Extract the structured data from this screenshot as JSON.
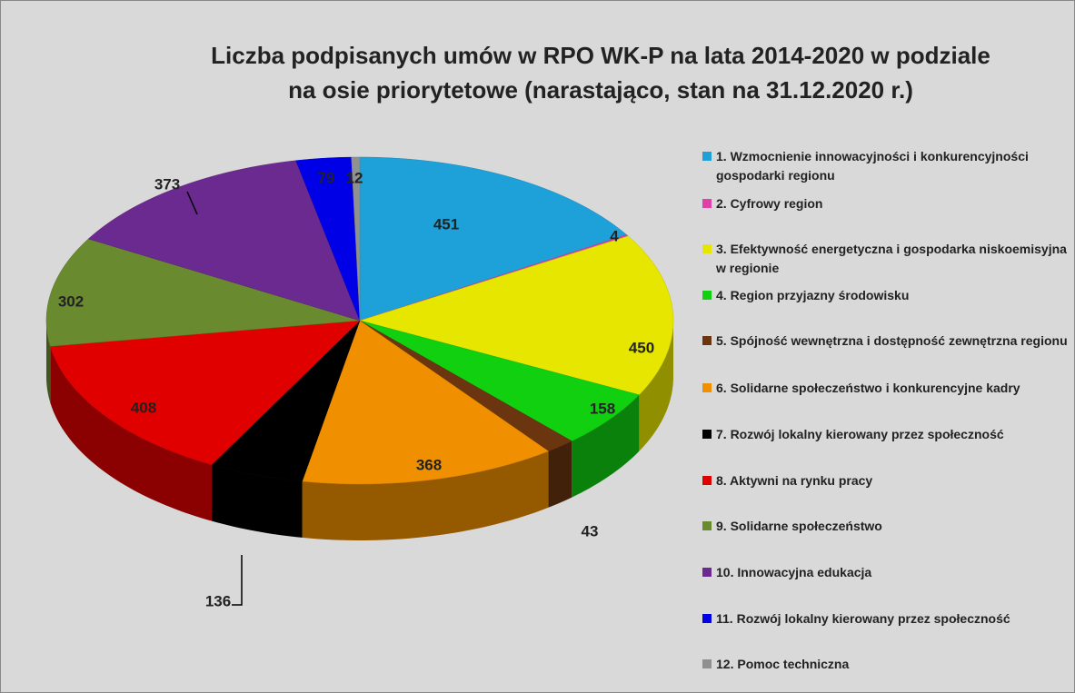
{
  "chart_data": {
    "type": "pie3d",
    "title": [
      "Liczba podpisanych umów w RPO WK-P na lata 2014-2020 w podziale",
      "na osie priorytetowe (narastająco, stan na 31.12.2020 r.)"
    ],
    "categories": [
      "1. Wzmocnienie innowacyjności i konkurencyjności gospodarki regionu",
      "2. Cyfrowy region",
      "3. Efektywność energetyczna i gospodarka niskoemisyjna w regionie",
      "4. Region przyjazny środowisku",
      "5. Spójność wewnętrzna i dostępność zewnętrzna regionu",
      "6. Solidarne społeczeństwo i konkurencyjne kadry",
      "7. Rozwój lokalny kierowany przez społeczność",
      "8. Aktywni na rynku pracy",
      "9. Solidarne społeczeństwo",
      "10. Innowacyjna edukacja",
      "11. Rozwój lokalny kierowany przez społeczność",
      "12.  Pomoc techniczna"
    ],
    "values": [
      451,
      4,
      450,
      158,
      43,
      368,
      136,
      408,
      302,
      373,
      79,
      12
    ],
    "colors": [
      "#1ea0d8",
      "#e040a8",
      "#e6e600",
      "#10d010",
      "#6b3510",
      "#f09000",
      "#000000",
      "#e00000",
      "#6a8a30",
      "#6a2a90",
      "#0000e6",
      "#909090"
    ],
    "legend": "right"
  }
}
